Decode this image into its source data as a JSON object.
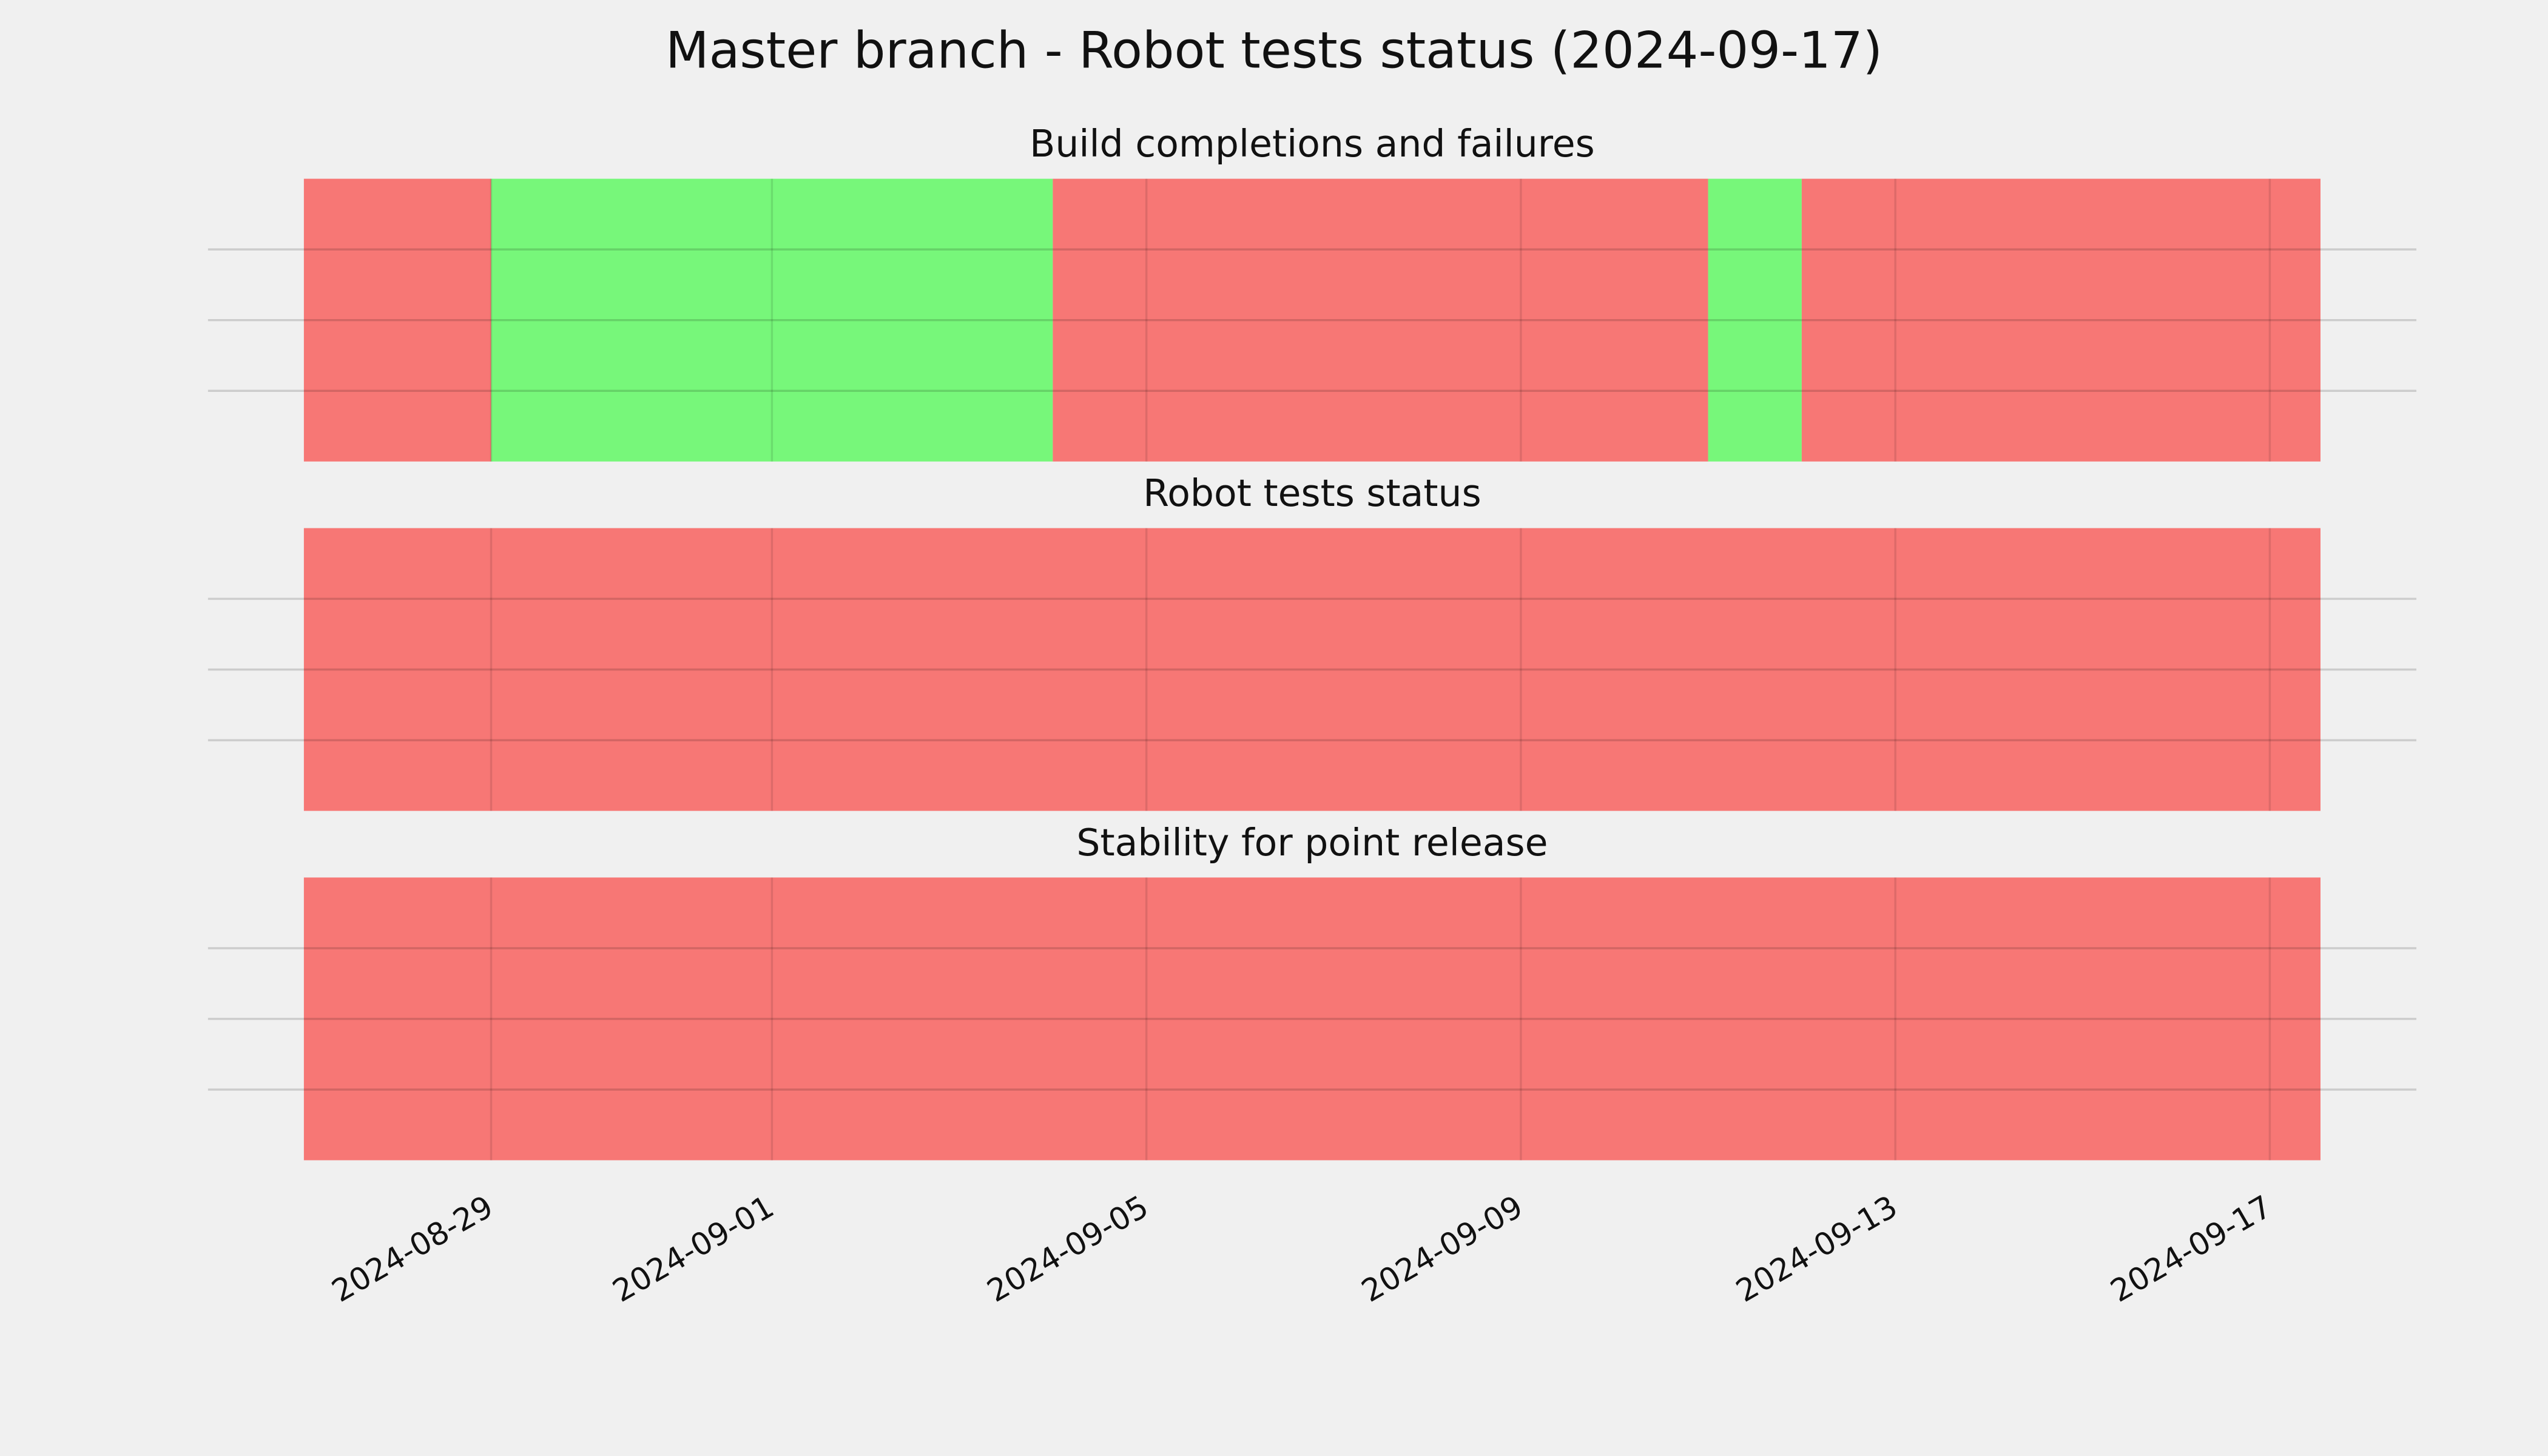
{
  "title": "Master branch - Robot tests status (2024-09-17)",
  "chart_data": [
    {
      "type": "timeline",
      "title": "Build completions and failures",
      "xlim": [
        "2024-08-27",
        "2024-09-17T13:00"
      ],
      "ylim": [
        0,
        1
      ],
      "yticks": [
        0.25,
        0.5,
        0.75
      ],
      "grid": true,
      "xticks": [
        "2024-08-29",
        "2024-09-01",
        "2024-09-05",
        "2024-09-09",
        "2024-09-13",
        "2024-09-17"
      ],
      "segments": [
        {
          "start": "2024-08-27",
          "end": "2024-08-29",
          "color": "#f77775"
        },
        {
          "start": "2024-08-29",
          "end": "2024-09-04",
          "color": "#77f77a"
        },
        {
          "start": "2024-09-04",
          "end": "2024-09-11",
          "color": "#f77775"
        },
        {
          "start": "2024-09-11",
          "end": "2024-09-12",
          "color": "#77f77a"
        },
        {
          "start": "2024-09-12",
          "end": "2024-09-17T13:00",
          "color": "#f77775"
        }
      ]
    },
    {
      "type": "timeline",
      "title": "Robot tests status",
      "xlim": [
        "2024-08-27",
        "2024-09-17T13:00"
      ],
      "ylim": [
        0,
        1
      ],
      "yticks": [
        0.25,
        0.5,
        0.75
      ],
      "grid": true,
      "xticks": [
        "2024-08-29",
        "2024-09-01",
        "2024-09-05",
        "2024-09-09",
        "2024-09-13",
        "2024-09-17"
      ],
      "segments": [
        {
          "start": "2024-08-27",
          "end": "2024-09-17T13:00",
          "color": "#f77775"
        }
      ]
    },
    {
      "type": "timeline",
      "title": "Stability for point release",
      "xlim": [
        "2024-08-27",
        "2024-09-17T13:00"
      ],
      "ylim": [
        0,
        1
      ],
      "yticks": [
        0.25,
        0.5,
        0.75
      ],
      "grid": true,
      "xticks": [
        "2024-08-29",
        "2024-09-01",
        "2024-09-05",
        "2024-09-09",
        "2024-09-13",
        "2024-09-17"
      ],
      "segments": [
        {
          "start": "2024-08-27",
          "end": "2024-09-17T13:00",
          "color": "#f77775"
        }
      ]
    }
  ]
}
